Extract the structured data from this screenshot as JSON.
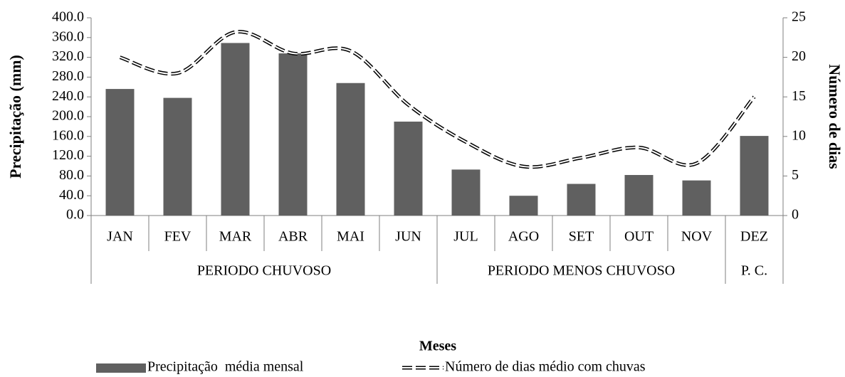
{
  "chart_data": {
    "type": "bar",
    "x_label": "Meses",
    "y_label": "Precipitação (mm)",
    "y2_label": "Número de dias",
    "categories": [
      "JAN",
      "FEV",
      "MAR",
      "ABR",
      "MAI",
      "JUN",
      "JUL",
      "AGO",
      "SET",
      "OUT",
      "NOV",
      "DEZ"
    ],
    "groups": [
      {
        "label": "PERIODO CHUVOSO",
        "span": 6
      },
      {
        "label": "PERIODO MENOS CHUVOSO",
        "span": 5
      },
      {
        "label": "P. C.",
        "span": 1
      }
    ],
    "series": [
      {
        "name": "Precipitação  média mensal",
        "type": "bar",
        "color": "#606060",
        "values": [
          256,
          238,
          349,
          328,
          268,
          190,
          93,
          40,
          64,
          82,
          71,
          161
        ]
      },
      {
        "name": "Número de dias médio com chuvas",
        "type": "line",
        "axis": "y2",
        "color": "#000000",
        "values": [
          20,
          18,
          23.2,
          20.5,
          20.8,
          14,
          9.3,
          6.2,
          7.3,
          8.6,
          6.6,
          15
        ]
      }
    ],
    "ylim": [
      0,
      400
    ],
    "yticks": [
      {
        "value": 0,
        "label": "0.0"
      },
      {
        "value": 40,
        "label": "40.0"
      },
      {
        "value": 80,
        "label": "80.0"
      },
      {
        "value": 120,
        "label": "120.0"
      },
      {
        "value": 160,
        "label": "160.0"
      },
      {
        "value": 200,
        "label": "200.0"
      },
      {
        "value": 240,
        "label": "240.0"
      },
      {
        "value": 280,
        "label": "280.0"
      },
      {
        "value": 320,
        "label": "320.0"
      },
      {
        "value": 360,
        "label": "360.0"
      },
      {
        "value": 400,
        "label": "400.0"
      }
    ],
    "y2lim": [
      0,
      25
    ],
    "y2ticks": [
      0,
      5,
      10,
      15,
      20,
      25
    ],
    "legend": "bottom"
  }
}
